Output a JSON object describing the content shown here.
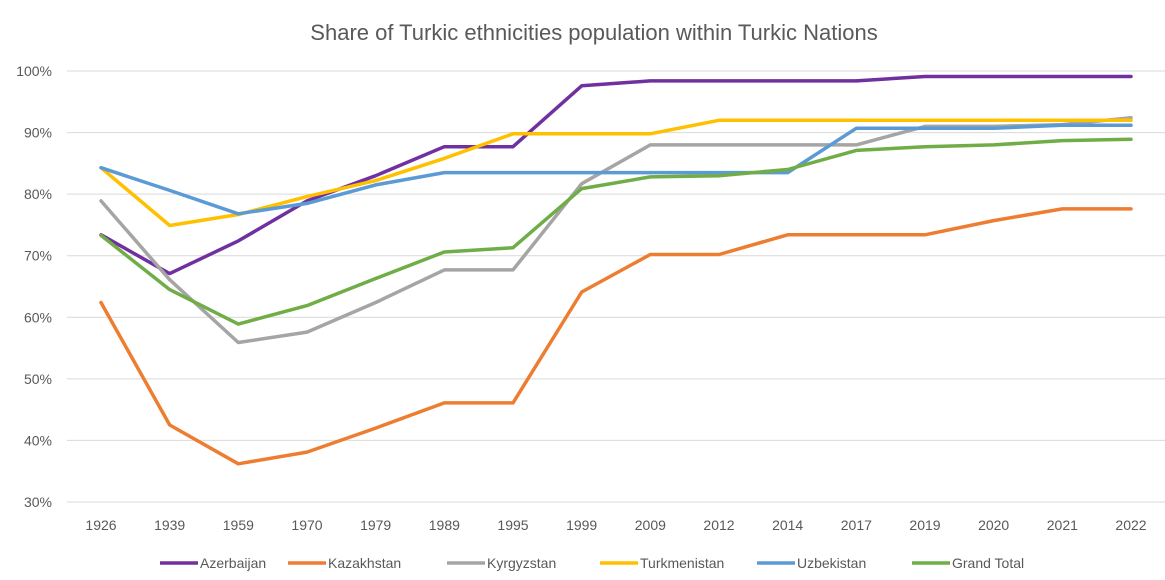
{
  "chart_data": {
    "type": "line",
    "title": "Share of Turkic ethnicities population within Turkic Nations",
    "xlabel": "",
    "ylabel": "",
    "ylim": [
      30,
      100
    ],
    "yticks": [
      "30%",
      "40%",
      "50%",
      "60%",
      "70%",
      "80%",
      "90%",
      "100%"
    ],
    "ytick_values": [
      30,
      40,
      50,
      60,
      70,
      80,
      90,
      100
    ],
    "grid": true,
    "legend_position": "bottom",
    "categories": [
      "1926",
      "1939",
      "1959",
      "1970",
      "1979",
      "1989",
      "1995",
      "1999",
      "2009",
      "2012",
      "2014",
      "2017",
      "2019",
      "2020",
      "2021",
      "2022"
    ],
    "series": [
      {
        "name": "Azerbaijan",
        "color": "#7030a0",
        "values": [
          73.4,
          67.1,
          72.4,
          78.9,
          83.0,
          87.7,
          87.7,
          97.6,
          98.4,
          98.4,
          98.4,
          98.4,
          99.1,
          99.1,
          99.1,
          99.1
        ]
      },
      {
        "name": "Kazakhstan",
        "color": "#ed7d31",
        "values": [
          62.4,
          42.5,
          36.2,
          38.1,
          42.0,
          46.1,
          46.1,
          64.1,
          70.2,
          70.2,
          73.4,
          73.4,
          73.4,
          75.7,
          77.6,
          77.6
        ]
      },
      {
        "name": "Kyrgyzstan",
        "color": "#a5a5a5",
        "values": [
          78.9,
          66.1,
          55.9,
          57.6,
          62.4,
          67.7,
          67.7,
          81.7,
          88.0,
          88.0,
          88.0,
          88.0,
          91.0,
          91.0,
          91.3,
          92.4
        ]
      },
      {
        "name": "Turkmenistan",
        "color": "#ffc000",
        "values": [
          84.3,
          74.9,
          76.7,
          79.6,
          82.2,
          85.8,
          89.8,
          89.8,
          89.8,
          92.0,
          92.0,
          92.0,
          92.0,
          92.0,
          92.0,
          92.0
        ]
      },
      {
        "name": "Uzbekistan",
        "color": "#5b9bd5",
        "values": [
          84.3,
          80.6,
          76.8,
          78.5,
          81.5,
          83.5,
          83.5,
          83.5,
          83.5,
          83.5,
          83.5,
          90.7,
          90.7,
          90.7,
          91.2,
          91.2
        ]
      },
      {
        "name": "Grand Total",
        "color": "#70ad47",
        "values": [
          73.3,
          64.5,
          58.9,
          61.9,
          66.3,
          70.6,
          71.3,
          80.9,
          82.8,
          83.0,
          84.0,
          87.1,
          87.7,
          88.0,
          88.7,
          88.9
        ]
      }
    ]
  }
}
